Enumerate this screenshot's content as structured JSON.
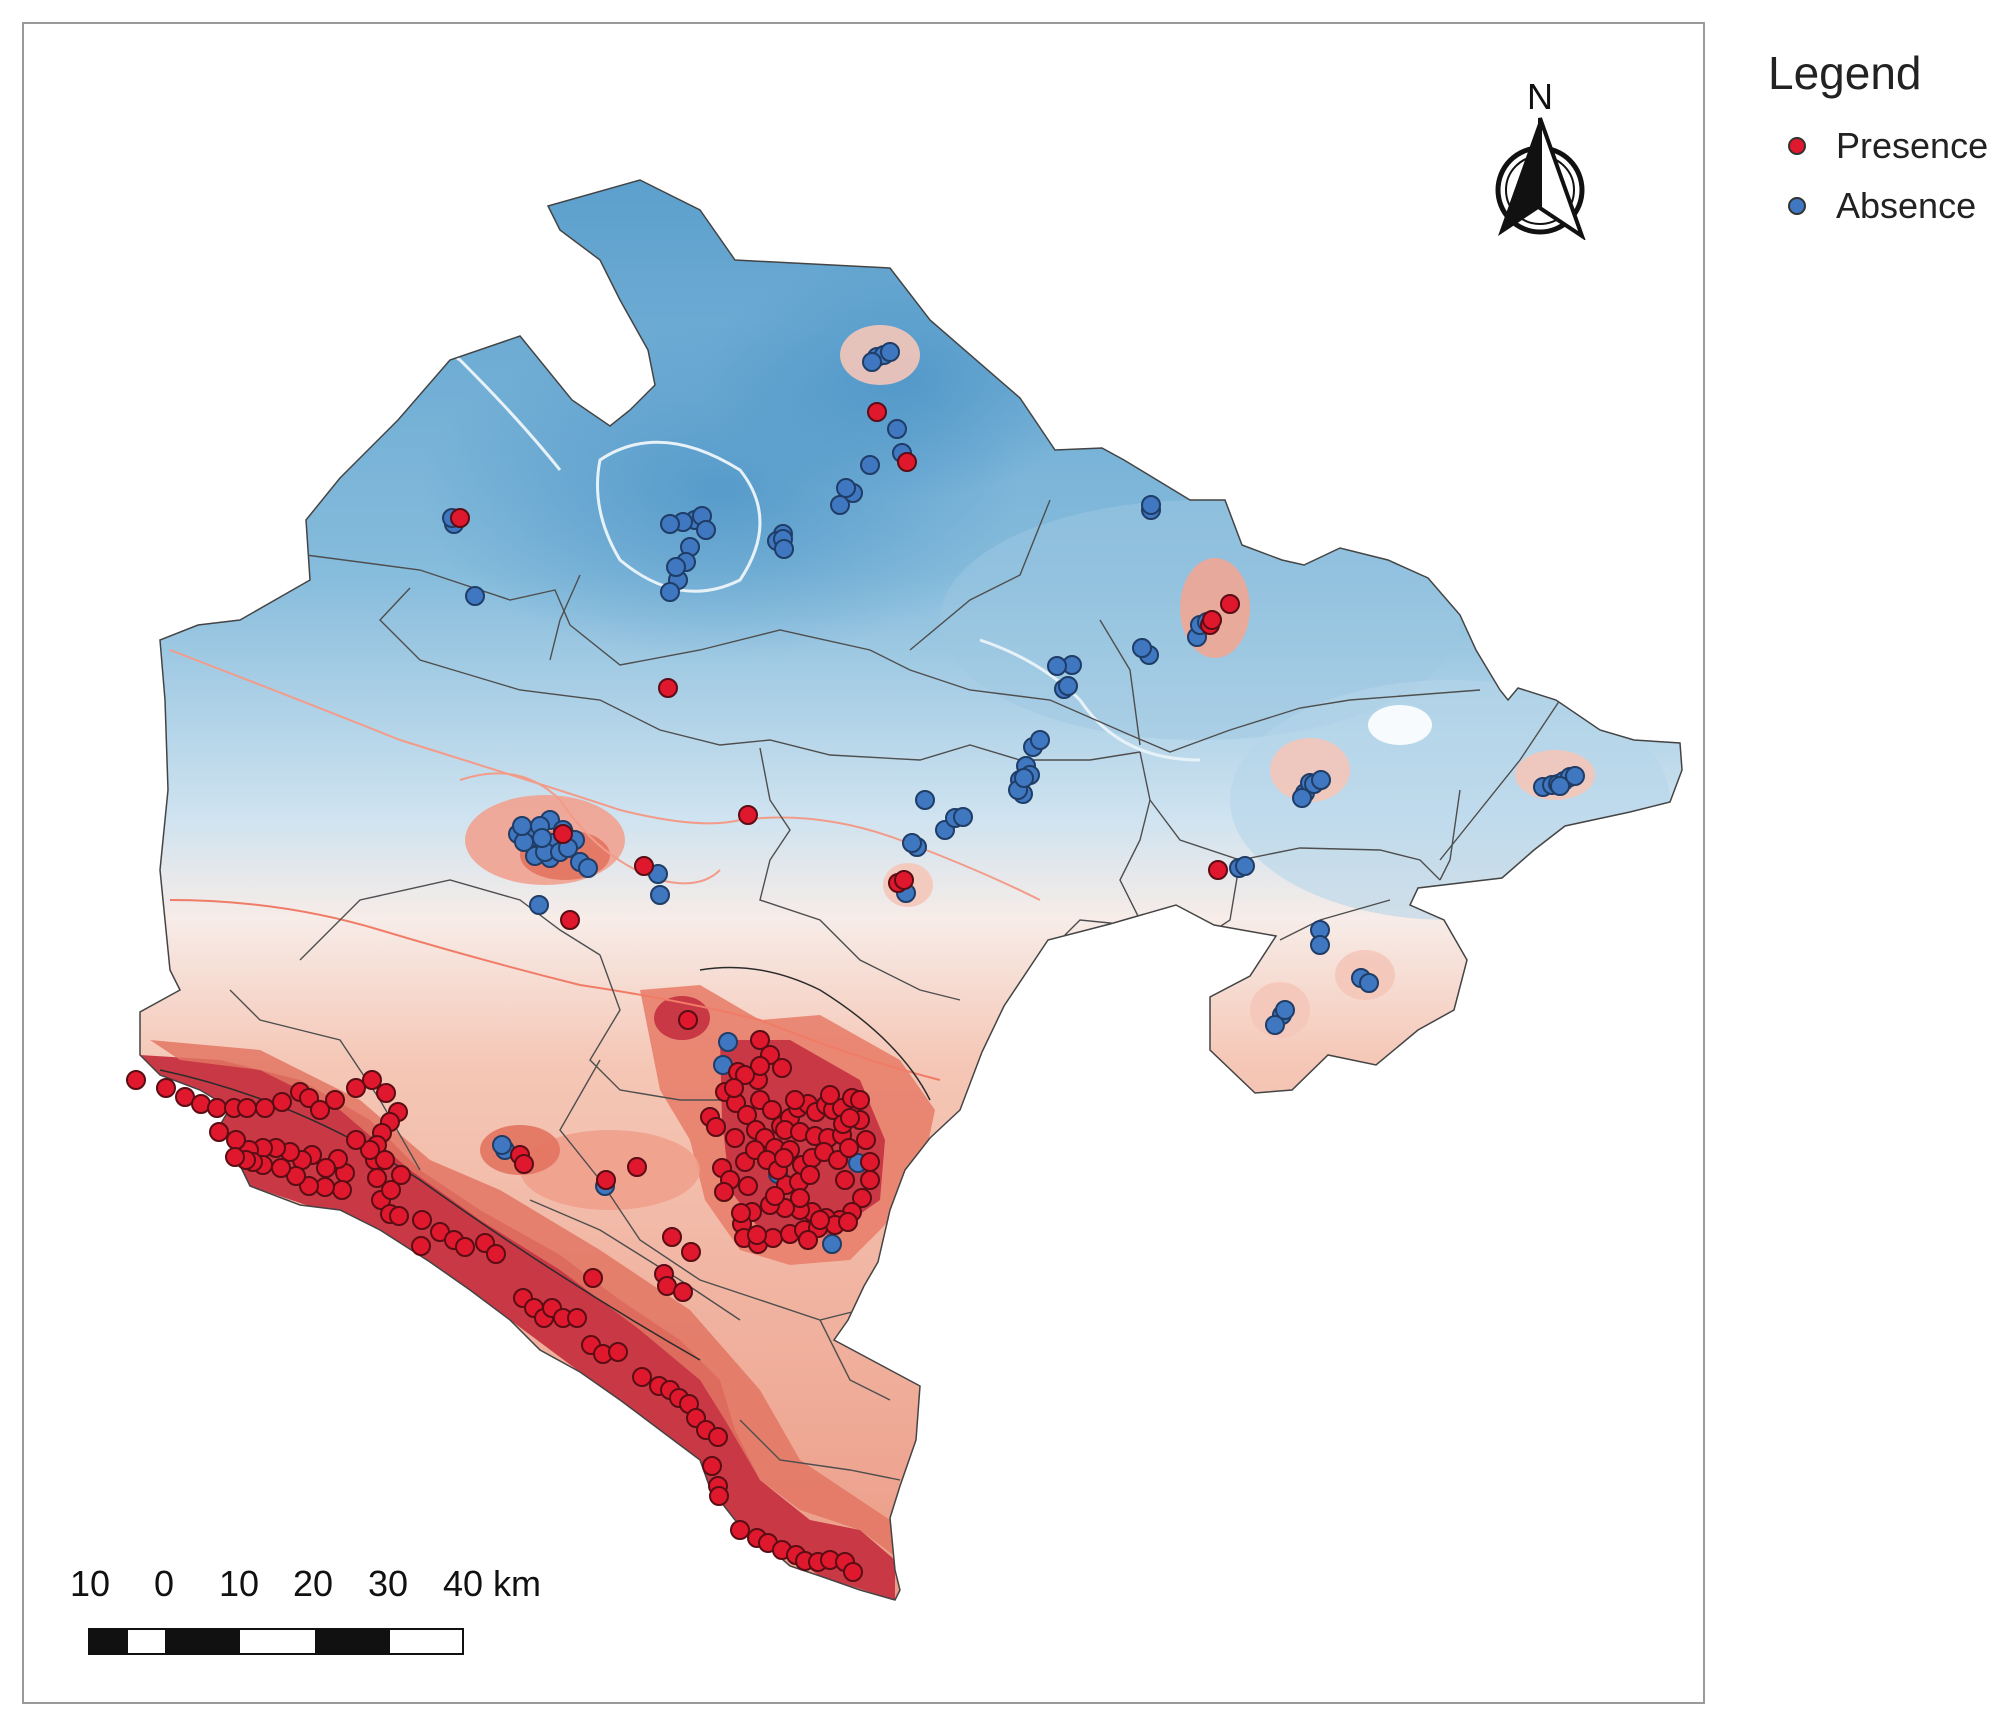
{
  "legend": {
    "title": "Legend",
    "items": [
      {
        "label": "Presence",
        "color": "#e0182d"
      },
      {
        "label": "Absence",
        "color": "#3f78c1"
      }
    ]
  },
  "north_arrow": {
    "label": "N"
  },
  "scale_bar": {
    "labels": [
      "10",
      "0",
      "10",
      "20",
      "30",
      "40 km"
    ],
    "colors": [
      "#111111",
      "#ffffff",
      "#111111",
      "#ffffff",
      "#111111",
      "#ffffff"
    ]
  },
  "colors": {
    "presence": "#e0182d",
    "absence": "#3f78c1",
    "high_suitability": "#c8343f",
    "low_suitability": "#6faad0",
    "border": "#555555"
  }
}
